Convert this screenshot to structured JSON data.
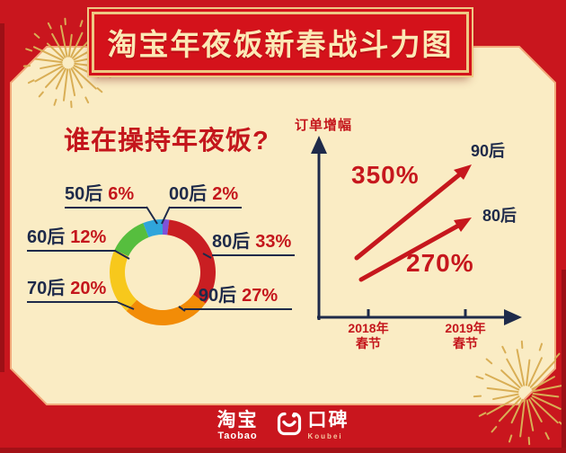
{
  "page": {
    "background_color": "#c9161e",
    "panel_color": "#faecc4",
    "edge_color": "#9d1016",
    "accent_navy": "#1e2a4a",
    "accent_red": "#c4161c",
    "gold_border": "#eec884",
    "firework_gold": "#d9ae55"
  },
  "banner": {
    "title": "淘宝年夜饭新春战斗力图"
  },
  "donut_section": {
    "heading": "谁在操持年夜饭?"
  },
  "chart_data": [
    {
      "type": "pie",
      "donut": true,
      "title": "谁在操持年夜饭?",
      "unit": "%",
      "start_angle_deg": 0,
      "direction": "clockwise",
      "legend_position": "callouts",
      "segments": [
        {
          "label": "00后",
          "value": 2,
          "display": "2%",
          "color": "#7e52d8"
        },
        {
          "label": "80后",
          "value": 33,
          "display": "33%",
          "color": "#c91e22"
        },
        {
          "label": "90后",
          "value": 27,
          "display": "27%",
          "color": "#f28c07"
        },
        {
          "label": "70后",
          "value": 20,
          "display": "20%",
          "color": "#f7c81c"
        },
        {
          "label": "60后",
          "value": 12,
          "display": "12%",
          "color": "#56be3e"
        },
        {
          "label": "50后",
          "value": 6,
          "display": "6%",
          "color": "#2fa5db"
        }
      ]
    },
    {
      "type": "line",
      "ylabel": "订单增幅",
      "x_categories": [
        "2018年春节",
        "2019年春节"
      ],
      "x_tick_lines": [
        [
          "2018年",
          "春节"
        ],
        [
          "2019年",
          "春节"
        ]
      ],
      "grid": false,
      "legend_position": "end-of-line",
      "series": [
        {
          "name": "90后",
          "growth_pct": 350,
          "display": "350%",
          "color": "#c6171d"
        },
        {
          "name": "80后",
          "growth_pct": 270,
          "display": "270%",
          "color": "#c6171d"
        }
      ]
    }
  ],
  "footer": {
    "taobao_cn": "淘宝",
    "taobao_en": "Taobao",
    "koubei_cn": "口碑",
    "koubei_en": "Koubei"
  },
  "icons": {
    "koubei_logo": "smiley-face-icon",
    "decorations": [
      "firework-icon",
      "firework-icon"
    ]
  }
}
